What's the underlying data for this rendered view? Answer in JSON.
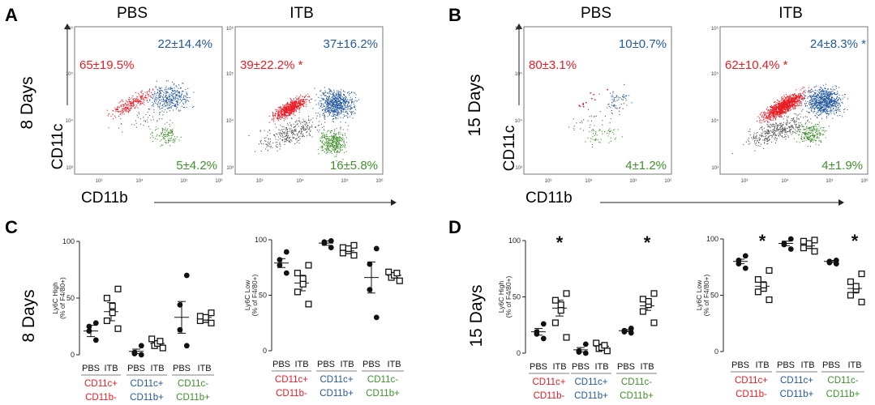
{
  "colors": {
    "red": "#ea1b24",
    "blue": "#23589e",
    "green": "#3f8f2c",
    "black": "#111111"
  },
  "panels": {
    "A": {
      "label": "A",
      "time": "8 Days",
      "xaxis": "CD11b",
      "yaxis": "CD11c",
      "pbs": {
        "title": "PBS",
        "red": "65±19.5%",
        "blue": "22±14.4%",
        "green": "5±4.2%"
      },
      "itb": {
        "title": "ITB",
        "red": "39±22.2% *",
        "blue": "37±16.2%",
        "green": "16±5.8%"
      }
    },
    "B": {
      "label": "B",
      "time": "15 Days",
      "xaxis": "CD11b",
      "yaxis": "CD11c",
      "pbs": {
        "title": "PBS",
        "red": "80±3.1%",
        "blue": "10±0.7%",
        "green": "4±1.2%"
      },
      "itb": {
        "title": "ITB",
        "red": "62±10.4% *",
        "blue": "24±8.3% *",
        "green": "4±1.9%"
      }
    },
    "C": {
      "label": "C",
      "time": "8 Days"
    },
    "D": {
      "label": "D",
      "time": "15 Days"
    }
  },
  "flow_ticks": [
    "10³",
    "10⁴",
    "10⁵",
    "10⁶"
  ],
  "dot_groups": [
    {
      "c1": "CD11c+",
      "c2": "CD11b-",
      "color": "red"
    },
    {
      "c1": "CD11c+",
      "c2": "CD11b+",
      "color": "blue"
    },
    {
      "c1": "CD11c-",
      "c2": "CD11b+",
      "color": "green"
    }
  ],
  "chart_data": [
    {
      "type": "scatter",
      "title": "8 Days Ly6C High",
      "ylabel": "Ly6C High",
      "ylabel2": "(% of F4/80+)",
      "ylim": [
        0,
        100
      ],
      "yticks": [
        0,
        50,
        100
      ],
      "categories": [
        "PBS",
        "ITB",
        "PBS",
        "ITB",
        "PBS",
        "ITB"
      ],
      "stars": [
        false,
        false,
        false,
        false,
        false,
        false
      ],
      "series": [
        {
          "name": "PBS CD11c+CD11b-",
          "values": [
            13,
            21,
            25,
            28
          ],
          "mean": 21,
          "sem": 5
        },
        {
          "name": "ITB CD11c+CD11b-",
          "values": [
            23,
            30,
            37,
            43,
            50,
            58
          ],
          "mean": 38,
          "sem": 8
        },
        {
          "name": "PBS CD11c+CD11b+",
          "values": [
            0,
            1,
            2,
            8
          ],
          "mean": 3,
          "sem": 2
        },
        {
          "name": "ITB CD11c+CD11b+",
          "values": [
            6,
            8,
            10,
            12,
            14
          ],
          "mean": 10,
          "sem": 2
        },
        {
          "name": "PBS CD11c-CD11b+",
          "values": [
            8,
            22,
            44,
            70
          ],
          "mean": 33,
          "sem": 14
        },
        {
          "name": "ITB CD11c-CD11b+",
          "values": [
            28,
            30,
            31,
            33,
            34,
            37
          ],
          "mean": 33,
          "sem": 2
        }
      ]
    },
    {
      "type": "scatter",
      "title": "8 Days Ly6C Low",
      "ylabel": "Ly6C Low",
      "ylabel2": "(% of F4/80+)",
      "ylim": [
        0,
        100
      ],
      "yticks": [
        0,
        50,
        100
      ],
      "categories": [
        "PBS",
        "ITB",
        "PBS",
        "ITB",
        "PBS",
        "ITB"
      ],
      "stars": [
        false,
        false,
        false,
        false,
        false,
        false
      ],
      "series": [
        {
          "name": "PBS CD11c+CD11b-",
          "values": [
            70,
            77,
            82,
            89
          ],
          "mean": 79,
          "sem": 4
        },
        {
          "name": "ITB CD11c+CD11b-",
          "values": [
            42,
            53,
            60,
            65,
            70,
            77
          ],
          "mean": 61,
          "sem": 7
        },
        {
          "name": "PBS CD11c+CD11b+",
          "values": [
            93,
            97,
            98,
            99
          ],
          "mean": 97,
          "sem": 2
        },
        {
          "name": "ITB CD11c+CD11b+",
          "values": [
            86,
            88,
            90,
            92,
            93,
            95
          ],
          "mean": 90,
          "sem": 2
        },
        {
          "name": "PBS CD11c-CD11b+",
          "values": [
            30,
            55,
            78,
            92
          ],
          "mean": 66,
          "sem": 14
        },
        {
          "name": "ITB CD11c-CD11b+",
          "values": [
            63,
            66,
            68,
            70,
            71
          ],
          "mean": 68,
          "sem": 2
        }
      ]
    },
    {
      "type": "scatter",
      "title": "15 Days Ly6C High",
      "ylabel": "Ly6C High",
      "ylabel2": "(% of F4/80+)",
      "ylim": [
        0,
        100
      ],
      "yticks": [
        0,
        50,
        100
      ],
      "categories": [
        "PBS",
        "ITB",
        "PBS",
        "ITB",
        "PBS",
        "ITB"
      ],
      "stars": [
        false,
        true,
        false,
        false,
        false,
        true
      ],
      "series": [
        {
          "name": "PBS CD11c+CD11b-",
          "values": [
            13,
            17,
            19,
            26
          ],
          "mean": 19,
          "sem": 3
        },
        {
          "name": "ITB CD11c+CD11b-",
          "values": [
            14,
            27,
            38,
            43,
            47,
            53
          ],
          "mean": 40,
          "sem": 7
        },
        {
          "name": "PBS CD11c+CD11b+",
          "values": [
            0,
            1,
            2,
            8
          ],
          "mean": 3,
          "sem": 2
        },
        {
          "name": "ITB CD11c+CD11b+",
          "values": [
            2,
            4,
            5,
            7,
            9
          ],
          "mean": 6,
          "sem": 2
        },
        {
          "name": "PBS CD11c-CD11b+",
          "values": [
            18,
            19,
            20,
            22
          ],
          "mean": 20,
          "sem": 1
        },
        {
          "name": "ITB CD11c-CD11b+",
          "values": [
            27,
            37,
            43,
            46,
            48,
            53
          ],
          "mean": 42,
          "sem": 4
        }
      ]
    },
    {
      "type": "scatter",
      "title": "15 Days Ly6C Low",
      "ylabel": "Ly6C Low",
      "ylabel2": "(% of F4/80+)",
      "ylim": [
        0,
        100
      ],
      "yticks": [
        0,
        50,
        100
      ],
      "categories": [
        "PBS",
        "ITB",
        "PBS",
        "ITB",
        "PBS",
        "ITB"
      ],
      "stars": [
        false,
        true,
        false,
        false,
        false,
        true
      ],
      "series": [
        {
          "name": "PBS CD11c+CD11b-",
          "values": [
            74,
            78,
            81,
            85
          ],
          "mean": 80,
          "sem": 2
        },
        {
          "name": "ITB CD11c+CD11b-",
          "values": [
            46,
            53,
            56,
            59,
            64,
            72
          ],
          "mean": 58,
          "sem": 4
        },
        {
          "name": "PBS CD11c+CD11b+",
          "values": [
            91,
            95,
            96,
            100
          ],
          "mean": 96,
          "sem": 2
        },
        {
          "name": "ITB CD11c+CD11b+",
          "values": [
            89,
            92,
            94,
            96,
            98,
            99
          ],
          "mean": 94,
          "sem": 2
        },
        {
          "name": "PBS CD11c-CD11b+",
          "values": [
            78,
            79,
            80,
            81
          ],
          "mean": 80,
          "sem": 1
        },
        {
          "name": "ITB CD11c-CD11b+",
          "values": [
            44,
            50,
            55,
            58,
            62,
            69
          ],
          "mean": 56,
          "sem": 4
        }
      ]
    }
  ]
}
